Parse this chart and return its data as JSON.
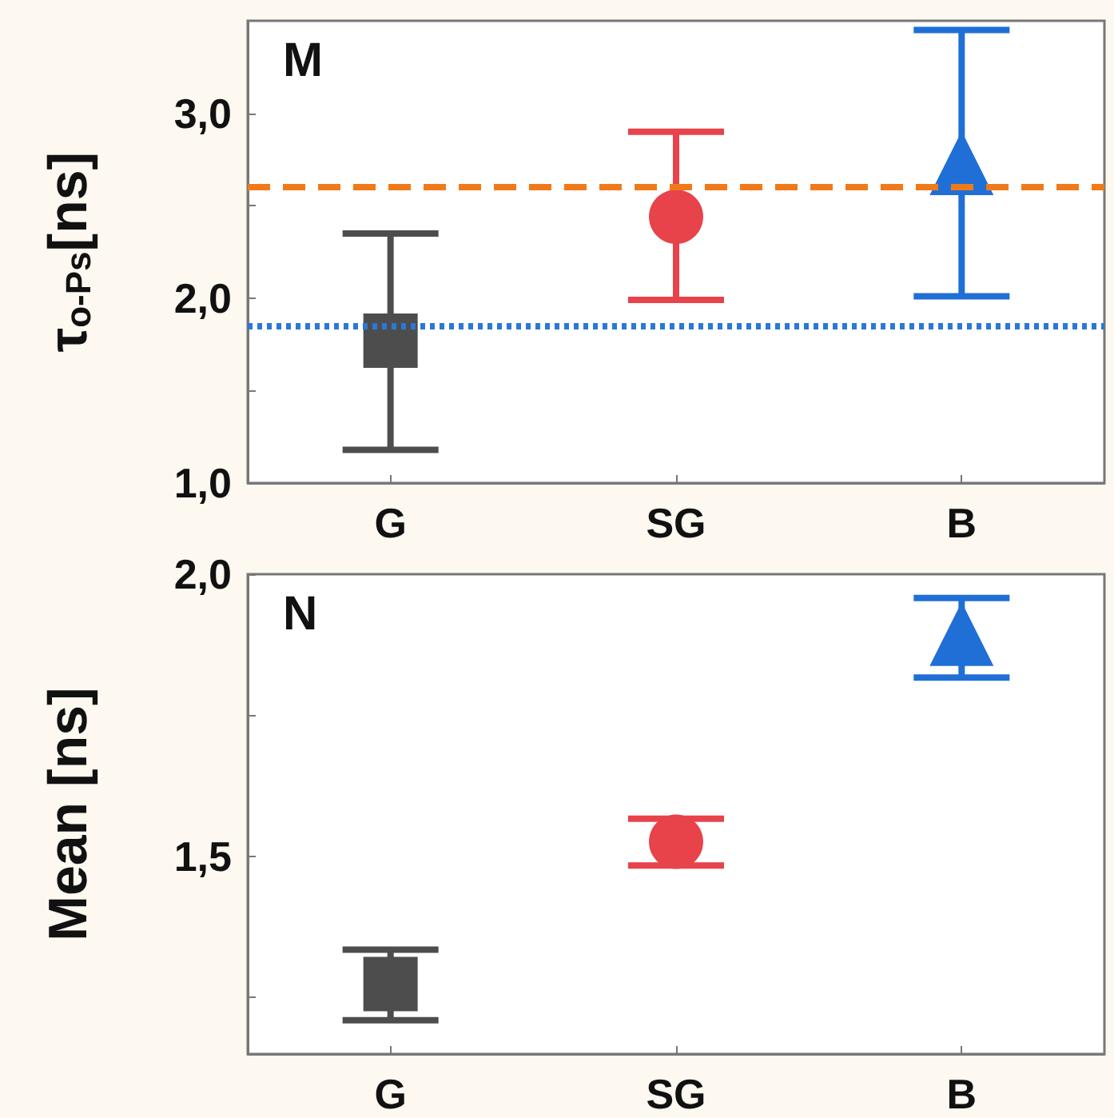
{
  "chart_data": [
    {
      "type": "scatter",
      "categories": [
        "G",
        "SG",
        "B"
      ],
      "ylabel": "τ$_{o-Ps}$[ns]",
      "annotations": [
        "M"
      ],
      "ylim": [
        1.0,
        3.5
      ],
      "yticks": [
        {
          "value": 1.0,
          "label": "1,0"
        },
        {
          "value": 1.5,
          "label": null
        },
        {
          "value": 2.0,
          "label": "2,0"
        },
        {
          "value": 2.5,
          "label": null
        },
        {
          "value": 3.0,
          "label": "3,0"
        }
      ],
      "grid": false,
      "series": [
        {
          "color": "#4d4d4d",
          "marker": "square",
          "x": [
            "G"
          ],
          "values": [
            1.77
          ],
          "errors": [
            [
              1.18,
              2.35
            ]
          ]
        },
        {
          "color": "#e8424a",
          "marker": "circle",
          "x": [
            "SG"
          ],
          "values": [
            2.44
          ],
          "errors": [
            [
              1.99,
              2.9
            ]
          ]
        },
        {
          "color": "#1f6fd6",
          "marker": "triangle",
          "x": [
            "B"
          ],
          "values": [
            2.73
          ],
          "errors": [
            [
              2.01,
              3.45
            ]
          ]
        }
      ],
      "ref_lines": [
        {
          "axis": "y",
          "value": 2.6,
          "color": "#f07a1a",
          "line_style": "dashed"
        },
        {
          "axis": "y",
          "value": 1.85,
          "color": "#2a78d8",
          "line_style": "dotted"
        }
      ]
    },
    {
      "type": "scatter",
      "categories": [
        "G",
        "SG",
        "B"
      ],
      "ylabel": "Mean [ns]",
      "annotations": [
        "N"
      ],
      "ylim": [
        1.15,
        2.0
      ],
      "yticks": [
        {
          "value": 1.25,
          "label": null
        },
        {
          "value": 1.5,
          "label": "1,5"
        },
        {
          "value": 1.75,
          "label": null
        },
        {
          "value": 2.0,
          "label": "2,0"
        }
      ],
      "grid": false,
      "series": [
        {
          "color": "#4d4d4d",
          "marker": "square",
          "x": [
            "G"
          ],
          "values": [
            1.274
          ],
          "errors": [
            [
              1.21,
              1.335
            ]
          ]
        },
        {
          "color": "#e8424a",
          "marker": "circle",
          "x": [
            "SG"
          ],
          "values": [
            1.526
          ],
          "errors": [
            [
              1.484,
              1.567
            ]
          ]
        },
        {
          "color": "#1f6fd6",
          "marker": "triangle",
          "x": [
            "B"
          ],
          "values": [
            1.894
          ],
          "errors": [
            [
              1.817,
              1.958
            ]
          ]
        }
      ]
    }
  ]
}
